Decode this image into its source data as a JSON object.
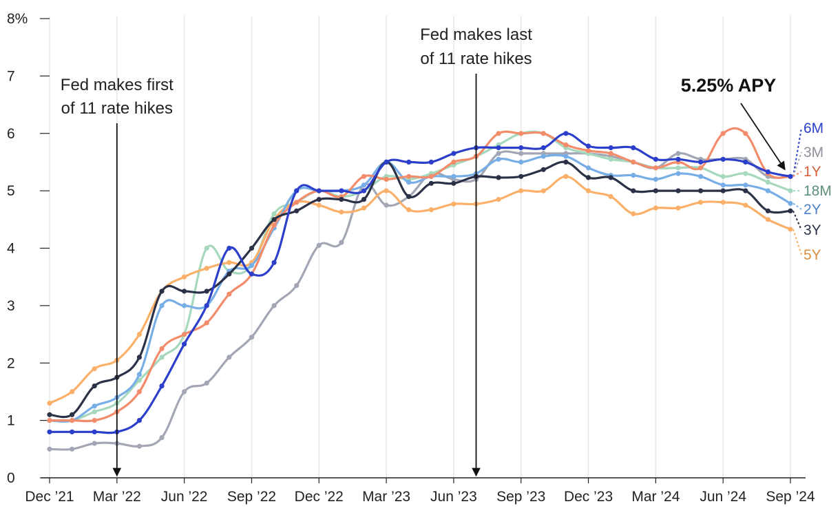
{
  "chart_data": {
    "type": "line",
    "title": "",
    "xlabel": "",
    "ylabel": "",
    "ylim": [
      0,
      8
    ],
    "y_tick_labels": [
      "0",
      "1",
      "2",
      "3",
      "4",
      "5",
      "6",
      "7",
      "8%"
    ],
    "x_tick_labels": [
      "Dec ’21",
      "Mar ’22",
      "Jun ’22",
      "Sep ’22",
      "Dec ’22",
      "Mar ’23",
      "Jun ’23",
      "Sep ’23",
      "Dec ’23",
      "Mar ’24",
      "Jun ’24",
      "Sep ’24"
    ],
    "grid": "vertical",
    "annotations": [
      {
        "lines": [
          "Fed makes first",
          "of 11 rate hikes"
        ],
        "date": "2022-03"
      },
      {
        "lines": [
          "Fed makes last",
          "of 11 rate hikes"
        ],
        "date": "2023-07"
      }
    ],
    "callout": "5.25% APY",
    "x": [
      "2021-12",
      "2022-01",
      "2022-02",
      "2022-03",
      "2022-04",
      "2022-05",
      "2022-06",
      "2022-07",
      "2022-08",
      "2022-09",
      "2022-10",
      "2022-11",
      "2022-12",
      "2023-01",
      "2023-02",
      "2023-03",
      "2023-04",
      "2023-05",
      "2023-06",
      "2023-07",
      "2023-08",
      "2023-09",
      "2023-10",
      "2023-11",
      "2023-12",
      "2024-01",
      "2024-02",
      "2024-03",
      "2024-04",
      "2024-05",
      "2024-06",
      "2024-07",
      "2024-08",
      "2024-09"
    ],
    "series": [
      {
        "name": "6M",
        "color": "#2b3fcb",
        "values": [
          0.8,
          0.8,
          0.8,
          0.8,
          1.0,
          1.6,
          2.33,
          3.0,
          4.0,
          3.55,
          3.75,
          5.0,
          5.0,
          5.0,
          5.0,
          5.5,
          5.5,
          5.5,
          5.65,
          5.75,
          5.75,
          5.75,
          5.75,
          6.0,
          5.78,
          5.75,
          5.75,
          5.55,
          5.55,
          5.5,
          5.55,
          5.5,
          5.33,
          5.25
        ]
      },
      {
        "name": "3M",
        "color": "#a3a6b4",
        "values": [
          0.5,
          0.5,
          0.6,
          0.6,
          0.55,
          0.7,
          1.5,
          1.65,
          2.1,
          2.45,
          3.0,
          3.35,
          4.05,
          4.1,
          5.1,
          4.75,
          4.9,
          5.3,
          5.2,
          5.2,
          5.65,
          5.65,
          5.65,
          5.65,
          5.65,
          5.6,
          5.5,
          5.4,
          5.65,
          5.55,
          5.55,
          5.55,
          5.25,
          5.25
        ]
      },
      {
        "name": "1Y",
        "color": "#f28c6a",
        "values": [
          1.0,
          1.0,
          1.0,
          1.15,
          1.5,
          2.25,
          2.5,
          2.7,
          3.2,
          3.55,
          4.4,
          4.8,
          5.0,
          4.9,
          5.25,
          5.2,
          5.25,
          5.25,
          5.5,
          5.6,
          6.0,
          6.0,
          6.0,
          5.8,
          5.7,
          5.65,
          5.5,
          5.4,
          5.5,
          5.4,
          6.0,
          6.0,
          5.3,
          5.25
        ]
      },
      {
        "name": "18M",
        "color": "#a6d8bd",
        "values": [
          1.0,
          1.0,
          1.15,
          1.3,
          1.7,
          2.1,
          2.5,
          4.0,
          3.6,
          3.7,
          4.6,
          4.8,
          5.0,
          4.9,
          5.0,
          5.25,
          5.2,
          5.3,
          5.45,
          5.6,
          5.8,
          6.0,
          6.0,
          5.75,
          5.65,
          5.55,
          5.5,
          5.4,
          5.4,
          5.4,
          5.25,
          5.3,
          5.15,
          5.0
        ]
      },
      {
        "name": "2Y",
        "color": "#78aee6",
        "values": [
          1.0,
          1.0,
          1.25,
          1.4,
          1.8,
          3.0,
          3.0,
          3.0,
          3.6,
          3.7,
          4.35,
          5.0,
          5.0,
          5.0,
          5.1,
          5.5,
          5.15,
          5.25,
          5.25,
          5.3,
          5.55,
          5.5,
          5.6,
          5.6,
          5.4,
          5.27,
          5.27,
          5.2,
          5.3,
          5.25,
          5.1,
          5.1,
          5.0,
          4.78
        ]
      },
      {
        "name": "3Y",
        "color": "#2b3147",
        "values": [
          1.1,
          1.1,
          1.6,
          1.75,
          2.1,
          3.25,
          3.25,
          3.25,
          3.55,
          4.0,
          4.5,
          4.65,
          4.85,
          4.85,
          4.85,
          5.5,
          4.9,
          5.13,
          5.13,
          5.25,
          5.23,
          5.25,
          5.37,
          5.5,
          5.23,
          5.23,
          5.0,
          5.0,
          5.0,
          5.0,
          5.0,
          5.0,
          4.65,
          4.65
        ]
      },
      {
        "name": "5Y",
        "color": "#fbb06a",
        "values": [
          1.3,
          1.5,
          1.9,
          2.05,
          2.5,
          3.25,
          3.5,
          3.65,
          3.75,
          3.75,
          4.5,
          4.8,
          4.75,
          4.63,
          4.7,
          5.0,
          4.67,
          4.67,
          4.77,
          4.77,
          4.85,
          5.0,
          5.0,
          5.25,
          5.0,
          4.9,
          4.6,
          4.7,
          4.7,
          4.8,
          4.8,
          4.75,
          4.5,
          4.33
        ]
      }
    ],
    "end_labels": [
      {
        "name": "6M",
        "color": "#2b3fcb"
      },
      {
        "name": "3M",
        "color": "#8e909a"
      },
      {
        "name": "1Y",
        "color": "#d4603b"
      },
      {
        "name": "18M",
        "color": "#5d8f76"
      },
      {
        "name": "2Y",
        "color": "#4c82c8"
      },
      {
        "name": "3Y",
        "color": "#2b3147"
      },
      {
        "name": "5Y",
        "color": "#d98d3c"
      }
    ]
  }
}
